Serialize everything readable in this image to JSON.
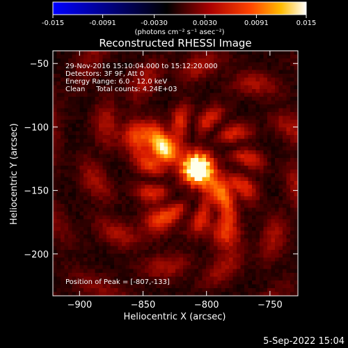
{
  "colorbar": {
    "ticks": [
      "-0.015",
      "-0.0091",
      "-0.0030",
      "0.0030",
      "0.0091",
      "0.015"
    ],
    "tick_values": [
      -0.015,
      -0.0091,
      -0.003,
      0.003,
      0.0091,
      0.015
    ],
    "units_label": "(photons cm⁻² s⁻¹ asec⁻²)",
    "range": [
      -0.015,
      0.015
    ],
    "colors": [
      "#0000ff",
      "#000000",
      "#cc0000",
      "#ffaa00",
      "#ffffff"
    ]
  },
  "chart_data": {
    "type": "heatmap",
    "title": "Reconstructed RHESSI Image",
    "xlabel": "Heliocentric X (arcsec)",
    "ylabel": "Heliocentric Y (arcsec)",
    "xlim": [
      -921,
      -728
    ],
    "ylim": [
      -233,
      -40
    ],
    "x_ticks": [
      -900,
      -850,
      -800,
      -750
    ],
    "y_ticks": [
      -50,
      -100,
      -150,
      -200
    ],
    "x_tick_labels": [
      "−900",
      "−850",
      "−800",
      "−750"
    ],
    "y_tick_labels": [
      "−50",
      "−100",
      "−150",
      "−200"
    ],
    "peak": [
      -807,
      -133
    ],
    "sources": [
      {
        "x": -807,
        "y": -133,
        "amp": 1.0
      },
      {
        "x": -832,
        "y": -118,
        "amp": 0.75
      },
      {
        "x": -855,
        "y": -107,
        "amp": 0.5
      },
      {
        "x": -790,
        "y": -150,
        "amp": 0.55
      },
      {
        "x": -785,
        "y": -185,
        "amp": 0.4
      },
      {
        "x": -840,
        "y": -175,
        "amp": 0.3
      }
    ],
    "annotations": [
      "29-Nov-2016 15:10:04.000 to 15:12:20.000",
      "Detectors: 3F 9F, Att 0",
      "Energy Range: 6.0 - 12.0 keV",
      "Clean     Total counts: 4.24E+03"
    ],
    "peak_label": "Position of Peak = [-807,-133]"
  },
  "footer": {
    "date": "5-Sep-2022 15:04"
  }
}
